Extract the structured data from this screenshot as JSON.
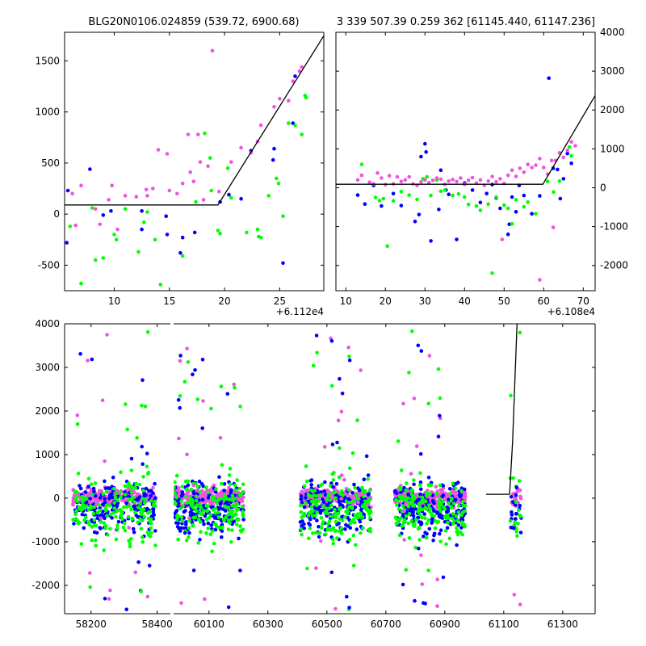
{
  "colors": {
    "blue": "#0000ff",
    "green": "#00ff00",
    "magenta": "#ee55dd",
    "model": "#000000"
  },
  "chart_data": [
    {
      "type": "scatter",
      "title": "BLG20N0106.024859 (539.72, 6900.68)",
      "xlabel": "",
      "ylabel": "",
      "x_offset_label": "+6.112e4",
      "xlim": [
        5.5,
        29
      ],
      "ylim": [
        -750,
        1780
      ],
      "xticks": [
        10,
        15,
        20,
        25
      ],
      "yticks": [
        -500,
        0,
        500,
        1000,
        1500
      ],
      "grid": false,
      "model_line": {
        "x": [
          5.5,
          19.4,
          29.2
        ],
        "y": [
          90,
          90,
          1780
        ]
      },
      "series": [
        {
          "color": "blue",
          "points": [
            [
              5.8,
              230
            ],
            [
              7.8,
              440
            ],
            [
              5.7,
              -280
            ],
            [
              9.7,
              30
            ],
            [
              12.5,
              30
            ],
            [
              12.5,
              -150
            ],
            [
              14.7,
              -20
            ],
            [
              16.2,
              -230
            ],
            [
              17.3,
              -180
            ],
            [
              19.6,
              120
            ],
            [
              21.5,
              150
            ],
            [
              20.4,
              190
            ],
            [
              24.4,
              530
            ],
            [
              24.5,
              640
            ],
            [
              25.3,
              -480
            ],
            [
              26.2,
              890
            ],
            [
              26.4,
              1350
            ],
            [
              22.4,
              620
            ],
            [
              9.0,
              -10
            ],
            [
              14.8,
              -200
            ],
            [
              16.0,
              -380
            ]
          ]
        },
        {
          "color": "green",
          "points": [
            [
              6.0,
              -120
            ],
            [
              7.0,
              -680
            ],
            [
              8.3,
              -450
            ],
            [
              9.0,
              -430
            ],
            [
              10.2,
              -250
            ],
            [
              11.0,
              50
            ],
            [
              12.2,
              -370
            ],
            [
              13.0,
              20
            ],
            [
              13.7,
              -250
            ],
            [
              14.2,
              -690
            ],
            [
              16.2,
              -410
            ],
            [
              17.4,
              120
            ],
            [
              18.2,
              790
            ],
            [
              18.7,
              550
            ],
            [
              18.8,
              230
            ],
            [
              19.4,
              -160
            ],
            [
              19.6,
              -190
            ],
            [
              20.3,
              450
            ],
            [
              20.6,
              160
            ],
            [
              23.0,
              -150
            ],
            [
              23.1,
              -220
            ],
            [
              23.3,
              -230
            ],
            [
              24.0,
              180
            ],
            [
              24.7,
              350
            ],
            [
              24.9,
              300
            ],
            [
              25.3,
              -20
            ],
            [
              25.8,
              890
            ],
            [
              26.4,
              870
            ],
            [
              27.3,
              1160
            ],
            [
              27.4,
              1140
            ],
            [
              27.0,
              780
            ],
            [
              22.0,
              -180
            ],
            [
              12.7,
              -80
            ],
            [
              10.0,
              -200
            ],
            [
              8.0,
              60
            ]
          ]
        },
        {
          "color": "magenta",
          "points": [
            [
              6.2,
              200
            ],
            [
              7.0,
              280
            ],
            [
              8.3,
              50
            ],
            [
              9.5,
              140
            ],
            [
              9.8,
              280
            ],
            [
              11.0,
              180
            ],
            [
              12.0,
              170
            ],
            [
              13.0,
              180
            ],
            [
              13.5,
              250
            ],
            [
              14.0,
              630
            ],
            [
              15.0,
              230
            ],
            [
              15.7,
              200
            ],
            [
              16.2,
              300
            ],
            [
              16.7,
              780
            ],
            [
              17.6,
              780
            ],
            [
              17.8,
              510
            ],
            [
              18.5,
              470
            ],
            [
              18.9,
              1600
            ],
            [
              19.5,
              220
            ],
            [
              20.6,
              510
            ],
            [
              21.5,
              650
            ],
            [
              22.4,
              600
            ],
            [
              23.0,
              710
            ],
            [
              23.3,
              870
            ],
            [
              24.5,
              1050
            ],
            [
              25.0,
              1130
            ],
            [
              25.8,
              1110
            ],
            [
              26.2,
              1300
            ],
            [
              26.8,
              1400
            ],
            [
              27.0,
              1440
            ],
            [
              17.2,
              320
            ],
            [
              16.9,
              410
            ],
            [
              18.1,
              140
            ],
            [
              14.8,
              590
            ],
            [
              12.9,
              240
            ],
            [
              10.3,
              -150
            ],
            [
              8.7,
              -100
            ],
            [
              6.5,
              -110
            ]
          ]
        }
      ]
    },
    {
      "type": "scatter",
      "title": "3 339 507.39 0.259 362 [61145.440, 61147.236]",
      "xlabel": "",
      "ylabel": "",
      "x_offset_label": "+6.108e4",
      "xlim": [
        7.5,
        73
      ],
      "ylim": [
        -2650,
        4000
      ],
      "xticks": [
        10,
        20,
        30,
        40,
        50,
        60,
        70
      ],
      "yticks": [
        -2000,
        -1000,
        0,
        1000,
        2000,
        3000,
        4000
      ],
      "grid": false,
      "model_line": {
        "x": [
          7.5,
          59.8,
          73
        ],
        "y": [
          90,
          90,
          2370
        ]
      },
      "series": [
        {
          "color": "blue",
          "points": [
            [
              13,
              -190
            ],
            [
              14.8,
              -420
            ],
            [
              17,
              60
            ],
            [
              19,
              -470
            ],
            [
              22,
              -150
            ],
            [
              24,
              -460
            ],
            [
              27.5,
              -870
            ],
            [
              28.5,
              -690
            ],
            [
              29,
              800
            ],
            [
              30,
              1130
            ],
            [
              30.3,
              920
            ],
            [
              31.5,
              -1370
            ],
            [
              33.5,
              -560
            ],
            [
              34,
              450
            ],
            [
              35.3,
              -60
            ],
            [
              36,
              -170
            ],
            [
              38,
              -1330
            ],
            [
              40,
              120
            ],
            [
              42,
              -60
            ],
            [
              44,
              -380
            ],
            [
              45.6,
              -150
            ],
            [
              47,
              80
            ],
            [
              48,
              -260
            ],
            [
              49,
              -530
            ],
            [
              51,
              -1200
            ],
            [
              51.3,
              -940
            ],
            [
              52,
              -240
            ],
            [
              53,
              -620
            ],
            [
              53.8,
              60
            ],
            [
              55,
              -200
            ],
            [
              57,
              -670
            ],
            [
              59,
              -210
            ],
            [
              61.3,
              2820
            ],
            [
              62.4,
              500
            ],
            [
              63.5,
              470
            ],
            [
              64.2,
              -280
            ],
            [
              65,
              230
            ],
            [
              66,
              880
            ],
            [
              67,
              630
            ]
          ]
        },
        {
          "color": "green",
          "points": [
            [
              14,
              600
            ],
            [
              17.5,
              -250
            ],
            [
              18.5,
              -330
            ],
            [
              19.5,
              -280
            ],
            [
              20.5,
              -1500
            ],
            [
              22,
              -340
            ],
            [
              24,
              -100
            ],
            [
              26,
              -190
            ],
            [
              28,
              -300
            ],
            [
              29.5,
              230
            ],
            [
              30.5,
              280
            ],
            [
              31.5,
              -200
            ],
            [
              33,
              200
            ],
            [
              34,
              -90
            ],
            [
              35,
              -60
            ],
            [
              37,
              -200
            ],
            [
              38.5,
              -160
            ],
            [
              40,
              -240
            ],
            [
              41,
              -430
            ],
            [
              43,
              -470
            ],
            [
              44,
              -580
            ],
            [
              46,
              -420
            ],
            [
              47,
              -2200
            ],
            [
              48,
              -240
            ],
            [
              50,
              -450
            ],
            [
              51,
              -530
            ],
            [
              52,
              -930
            ],
            [
              53,
              -310
            ],
            [
              55,
              -490
            ],
            [
              56,
              -370
            ],
            [
              58,
              -670
            ],
            [
              61,
              160
            ],
            [
              62.5,
              -110
            ],
            [
              64,
              170
            ],
            [
              66.5,
              1050
            ],
            [
              67,
              820
            ]
          ]
        },
        {
          "color": "magenta",
          "points": [
            [
              13,
              200
            ],
            [
              14,
              320
            ],
            [
              16,
              140
            ],
            [
              17,
              100
            ],
            [
              18,
              380
            ],
            [
              19,
              250
            ],
            [
              20,
              80
            ],
            [
              21,
              310
            ],
            [
              22,
              100
            ],
            [
              23,
              280
            ],
            [
              24,
              160
            ],
            [
              25,
              200
            ],
            [
              26,
              280
            ],
            [
              27,
              100
            ],
            [
              28,
              60
            ],
            [
              29,
              150
            ],
            [
              30,
              200
            ],
            [
              31,
              130
            ],
            [
              32,
              190
            ],
            [
              33,
              250
            ],
            [
              34,
              220
            ],
            [
              35,
              90
            ],
            [
              36,
              170
            ],
            [
              37,
              210
            ],
            [
              38,
              160
            ],
            [
              39,
              250
            ],
            [
              40,
              90
            ],
            [
              41,
              190
            ],
            [
              42,
              260
            ],
            [
              43,
              120
            ],
            [
              44,
              200
            ],
            [
              45,
              60
            ],
            [
              46,
              170
            ],
            [
              47,
              290
            ],
            [
              48,
              150
            ],
            [
              49,
              230
            ],
            [
              50,
              110
            ],
            [
              51,
              320
            ],
            [
              52,
              450
            ],
            [
              53,
              290
            ],
            [
              54,
              500
            ],
            [
              55,
              400
            ],
            [
              56,
              600
            ],
            [
              57,
              520
            ],
            [
              58,
              580
            ],
            [
              59,
              750
            ],
            [
              60,
              520
            ],
            [
              61,
              350
            ],
            [
              62,
              700
            ],
            [
              63,
              700
            ],
            [
              64,
              900
            ],
            [
              65,
              780
            ],
            [
              66,
              960
            ],
            [
              67,
              1180
            ],
            [
              68,
              1080
            ],
            [
              59,
              -2370
            ],
            [
              49.5,
              -1330
            ],
            [
              62.4,
              -1020
            ]
          ]
        }
      ]
    },
    {
      "type": "scatter",
      "title": "",
      "xlabel": "",
      "ylabel": "",
      "ylim": [
        -2650,
        4000
      ],
      "yticks": [
        -2000,
        -1000,
        0,
        1000,
        2000,
        3000,
        4000
      ],
      "grid": false,
      "segments": [
        {
          "xlim": [
            58120,
            58440
          ],
          "xticks": [
            58200,
            58400
          ],
          "clusters": [
            [
              58270,
              125
            ]
          ]
        },
        {
          "xlim": [
            59980,
            61410
          ],
          "xticks": [
            60100,
            60300,
            60500,
            60700,
            60900,
            61100,
            61300
          ],
          "clusters": [
            [
              60100,
              120
            ],
            [
              60530,
              120
            ],
            [
              60850,
              120
            ],
            [
              61140,
              20
            ]
          ]
        }
      ],
      "model_line": {
        "x": [
          61040,
          61120,
          61130,
          61145
        ],
        "y": [
          90,
          90,
          1300,
          4000
        ]
      }
    }
  ]
}
